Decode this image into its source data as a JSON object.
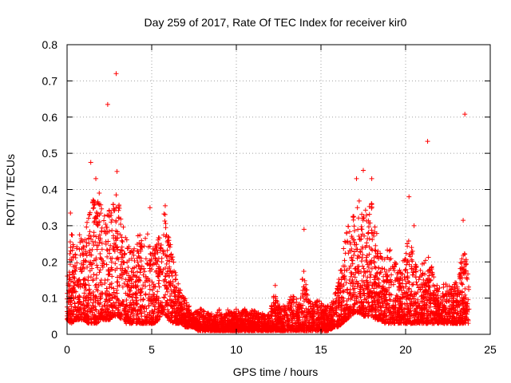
{
  "chart_data": {
    "type": "scatter",
    "title": "Day 259 of 2017, Rate Of TEC Index for receiver kir0",
    "xlabel": "GPS time / hours",
    "ylabel": "ROTI / TECUs",
    "xlim": [
      0,
      25
    ],
    "ylim": [
      0,
      0.8
    ],
    "xticks": [
      0,
      5,
      10,
      15,
      20,
      25
    ],
    "xtick_labels": [
      "0",
      "5",
      "10",
      "15",
      "20",
      "25"
    ],
    "yticks": [
      0,
      0.1,
      0.2,
      0.3,
      0.4,
      0.5,
      0.6,
      0.7,
      0.8
    ],
    "ytick_labels": [
      "0",
      "0.1",
      "0.2",
      "0.3",
      "0.4",
      "0.5",
      "0.6",
      "0.7",
      "0.8"
    ],
    "grid": true,
    "marker": "plus",
    "series": [
      {
        "name": "ROTI",
        "color": "#ff0000",
        "envelope": [
          [
            0.0,
            0.04,
            0.15
          ],
          [
            0.25,
            0.03,
            0.3
          ],
          [
            0.5,
            0.04,
            0.22
          ],
          [
            0.75,
            0.04,
            0.3
          ],
          [
            1.0,
            0.04,
            0.26
          ],
          [
            1.25,
            0.03,
            0.33
          ],
          [
            1.5,
            0.03,
            0.37
          ],
          [
            1.75,
            0.03,
            0.39
          ],
          [
            2.0,
            0.04,
            0.36
          ],
          [
            2.25,
            0.04,
            0.33
          ],
          [
            2.5,
            0.04,
            0.35
          ],
          [
            2.75,
            0.05,
            0.36
          ],
          [
            3.0,
            0.05,
            0.38
          ],
          [
            3.25,
            0.04,
            0.31
          ],
          [
            3.5,
            0.03,
            0.27
          ],
          [
            3.75,
            0.03,
            0.23
          ],
          [
            4.0,
            0.03,
            0.25
          ],
          [
            4.25,
            0.03,
            0.28
          ],
          [
            4.5,
            0.03,
            0.26
          ],
          [
            4.75,
            0.03,
            0.28
          ],
          [
            5.0,
            0.03,
            0.24
          ],
          [
            5.25,
            0.03,
            0.27
          ],
          [
            5.5,
            0.05,
            0.29
          ],
          [
            5.75,
            0.06,
            0.35
          ],
          [
            6.0,
            0.04,
            0.28
          ],
          [
            6.25,
            0.03,
            0.22
          ],
          [
            6.5,
            0.03,
            0.15
          ],
          [
            6.75,
            0.03,
            0.12
          ],
          [
            7.0,
            0.02,
            0.1
          ],
          [
            7.25,
            0.02,
            0.08
          ],
          [
            7.5,
            0.02,
            0.06
          ],
          [
            7.75,
            0.01,
            0.07
          ],
          [
            8.0,
            0.01,
            0.07
          ],
          [
            8.25,
            0.01,
            0.06
          ],
          [
            8.5,
            0.01,
            0.06
          ],
          [
            8.75,
            0.01,
            0.05
          ],
          [
            9.0,
            0.01,
            0.07
          ],
          [
            9.25,
            0.01,
            0.05
          ],
          [
            9.5,
            0.01,
            0.07
          ],
          [
            9.75,
            0.01,
            0.06
          ],
          [
            10.0,
            0.01,
            0.07
          ],
          [
            10.25,
            0.01,
            0.06
          ],
          [
            10.5,
            0.01,
            0.07
          ],
          [
            10.75,
            0.01,
            0.06
          ],
          [
            11.0,
            0.01,
            0.07
          ],
          [
            11.25,
            0.01,
            0.06
          ],
          [
            11.5,
            0.01,
            0.06
          ],
          [
            11.75,
            0.01,
            0.05
          ],
          [
            12.0,
            0.01,
            0.06
          ],
          [
            12.25,
            0.01,
            0.12
          ],
          [
            12.5,
            0.01,
            0.08
          ],
          [
            12.75,
            0.01,
            0.08
          ],
          [
            13.0,
            0.01,
            0.1
          ],
          [
            13.25,
            0.01,
            0.11
          ],
          [
            13.5,
            0.01,
            0.1
          ],
          [
            13.75,
            0.01,
            0.09
          ],
          [
            14.0,
            0.01,
            0.2
          ],
          [
            14.25,
            0.01,
            0.1
          ],
          [
            14.5,
            0.01,
            0.09
          ],
          [
            14.75,
            0.01,
            0.1
          ],
          [
            15.0,
            0.01,
            0.09
          ],
          [
            15.25,
            0.01,
            0.08
          ],
          [
            15.5,
            0.01,
            0.08
          ],
          [
            15.75,
            0.02,
            0.1
          ],
          [
            16.0,
            0.02,
            0.14
          ],
          [
            16.25,
            0.03,
            0.21
          ],
          [
            16.5,
            0.04,
            0.3
          ],
          [
            16.75,
            0.05,
            0.31
          ],
          [
            17.0,
            0.06,
            0.36
          ],
          [
            17.25,
            0.06,
            0.38
          ],
          [
            17.5,
            0.05,
            0.34
          ],
          [
            17.75,
            0.05,
            0.36
          ],
          [
            18.0,
            0.05,
            0.38
          ],
          [
            18.25,
            0.04,
            0.3
          ],
          [
            18.5,
            0.04,
            0.23
          ],
          [
            18.75,
            0.03,
            0.22
          ],
          [
            19.0,
            0.03,
            0.25
          ],
          [
            19.25,
            0.03,
            0.22
          ],
          [
            19.5,
            0.03,
            0.2
          ],
          [
            19.75,
            0.03,
            0.18
          ],
          [
            20.0,
            0.03,
            0.24
          ],
          [
            20.25,
            0.03,
            0.27
          ],
          [
            20.5,
            0.03,
            0.22
          ],
          [
            20.75,
            0.03,
            0.16
          ],
          [
            21.0,
            0.03,
            0.2
          ],
          [
            21.25,
            0.03,
            0.23
          ],
          [
            21.5,
            0.03,
            0.2
          ],
          [
            21.75,
            0.03,
            0.14
          ],
          [
            22.0,
            0.03,
            0.13
          ],
          [
            22.25,
            0.03,
            0.15
          ],
          [
            22.5,
            0.03,
            0.14
          ],
          [
            22.75,
            0.03,
            0.13
          ],
          [
            23.0,
            0.03,
            0.15
          ],
          [
            23.25,
            0.03,
            0.2
          ],
          [
            23.5,
            0.03,
            0.25
          ],
          [
            23.75,
            0.03,
            0.14
          ]
        ],
        "outliers": [
          [
            2.9,
            0.72
          ],
          [
            2.4,
            0.635
          ],
          [
            2.95,
            0.45
          ],
          [
            1.4,
            0.475
          ],
          [
            1.7,
            0.43
          ],
          [
            21.3,
            0.533
          ],
          [
            23.5,
            0.608
          ],
          [
            17.5,
            0.453
          ],
          [
            20.2,
            0.38
          ],
          [
            20.5,
            0.3
          ],
          [
            17.1,
            0.43
          ],
          [
            18.0,
            0.43
          ],
          [
            4.9,
            0.35
          ],
          [
            14.0,
            0.29
          ],
          [
            23.4,
            0.315
          ],
          [
            5.8,
            0.355
          ],
          [
            0.2,
            0.335
          ],
          [
            2.9,
            0.385
          ],
          [
            1.9,
            0.39
          ],
          [
            12.3,
            0.135
          ]
        ]
      }
    ]
  }
}
